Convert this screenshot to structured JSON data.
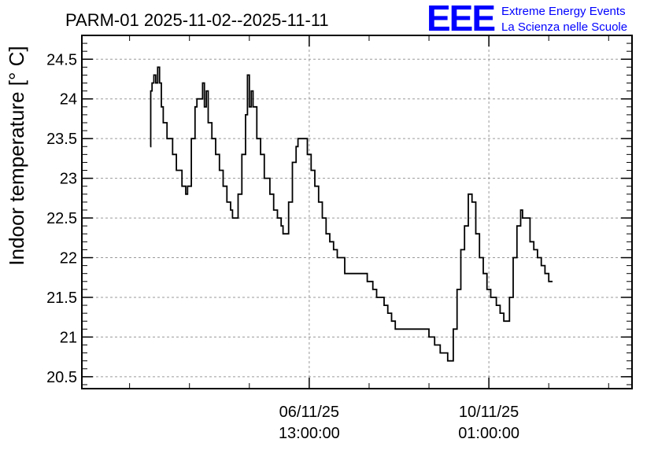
{
  "chart_data": {
    "type": "line",
    "title": "PARM-01 2025-11-02--2025-11-11",
    "ylabel": "Indoor temperature [° C]",
    "xlabel": "",
    "ylim": [
      20.35,
      24.8
    ],
    "yticks": [
      20.5,
      21,
      21.5,
      22,
      22.5,
      23,
      23.5,
      24,
      24.5
    ],
    "ytick_labels": [
      "20.5",
      "21",
      "21.5",
      "22",
      "22.5",
      "23",
      "23.5",
      "24",
      "24.5"
    ],
    "x_unit": "hours since 2025-11-02 00:00 (approx.)",
    "xlim": [
      -36.5,
      257.5
    ],
    "xticks_major": [
      {
        "x": 85,
        "date": "06/11/25",
        "time": "13:00:00"
      },
      {
        "x": 181,
        "date": "10/11/25",
        "time": "01:00:00"
      }
    ],
    "xticks_minor": [
      -11,
      21,
      53,
      117,
      149,
      213,
      245
    ],
    "grid": true,
    "line_color": "#000000",
    "series": [
      {
        "values": [
          {
            "x": 0,
            "y": 23.4
          },
          {
            "x": 0.3,
            "y": 24.1
          },
          {
            "x": 1,
            "y": 24.2
          },
          {
            "x": 2,
            "y": 24.3
          },
          {
            "x": 3,
            "y": 24.2
          },
          {
            "x": 4,
            "y": 24.4
          },
          {
            "x": 5,
            "y": 24.2
          },
          {
            "x": 6,
            "y": 23.9
          },
          {
            "x": 7,
            "y": 23.7
          },
          {
            "x": 9,
            "y": 23.5
          },
          {
            "x": 12,
            "y": 23.3
          },
          {
            "x": 14,
            "y": 23.1
          },
          {
            "x": 17,
            "y": 22.9
          },
          {
            "x": 19,
            "y": 22.8
          },
          {
            "x": 20,
            "y": 22.9
          },
          {
            "x": 22,
            "y": 23.5
          },
          {
            "x": 24,
            "y": 23.9
          },
          {
            "x": 25,
            "y": 24.0
          },
          {
            "x": 28,
            "y": 24.2
          },
          {
            "x": 29,
            "y": 23.9
          },
          {
            "x": 30,
            "y": 24.1
          },
          {
            "x": 31,
            "y": 23.7
          },
          {
            "x": 33,
            "y": 23.5
          },
          {
            "x": 35,
            "y": 23.3
          },
          {
            "x": 37,
            "y": 23.1
          },
          {
            "x": 39,
            "y": 22.9
          },
          {
            "x": 41,
            "y": 22.7
          },
          {
            "x": 43,
            "y": 22.6
          },
          {
            "x": 44,
            "y": 22.5
          },
          {
            "x": 46,
            "y": 22.5
          },
          {
            "x": 47,
            "y": 22.8
          },
          {
            "x": 49,
            "y": 23.3
          },
          {
            "x": 51,
            "y": 23.8
          },
          {
            "x": 52,
            "y": 24.3
          },
          {
            "x": 53,
            "y": 23.9
          },
          {
            "x": 54,
            "y": 24.1
          },
          {
            "x": 55,
            "y": 23.9
          },
          {
            "x": 57,
            "y": 23.5
          },
          {
            "x": 59,
            "y": 23.3
          },
          {
            "x": 61,
            "y": 23.0
          },
          {
            "x": 64,
            "y": 22.8
          },
          {
            "x": 66,
            "y": 22.6
          },
          {
            "x": 68,
            "y": 22.5
          },
          {
            "x": 70,
            "y": 22.4
          },
          {
            "x": 71,
            "y": 22.3
          },
          {
            "x": 73,
            "y": 22.3
          },
          {
            "x": 74,
            "y": 22.7
          },
          {
            "x": 76,
            "y": 23.2
          },
          {
            "x": 78,
            "y": 23.4
          },
          {
            "x": 79,
            "y": 23.5
          },
          {
            "x": 82,
            "y": 23.5
          },
          {
            "x": 84,
            "y": 23.3
          },
          {
            "x": 86,
            "y": 23.1
          },
          {
            "x": 88,
            "y": 22.9
          },
          {
            "x": 90,
            "y": 22.7
          },
          {
            "x": 92,
            "y": 22.5
          },
          {
            "x": 94,
            "y": 22.3
          },
          {
            "x": 96,
            "y": 22.2
          },
          {
            "x": 98,
            "y": 22.1
          },
          {
            "x": 100,
            "y": 22.0
          },
          {
            "x": 104,
            "y": 21.8
          },
          {
            "x": 112,
            "y": 21.8
          },
          {
            "x": 116,
            "y": 21.7
          },
          {
            "x": 119,
            "y": 21.6
          },
          {
            "x": 121,
            "y": 21.5
          },
          {
            "x": 125,
            "y": 21.4
          },
          {
            "x": 127,
            "y": 21.3
          },
          {
            "x": 129,
            "y": 21.2
          },
          {
            "x": 131,
            "y": 21.1
          },
          {
            "x": 144,
            "y": 21.1
          },
          {
            "x": 149,
            "y": 21.0
          },
          {
            "x": 152,
            "y": 20.9
          },
          {
            "x": 155,
            "y": 20.8
          },
          {
            "x": 158,
            "y": 20.8
          },
          {
            "x": 159,
            "y": 20.7
          },
          {
            "x": 161,
            "y": 20.7
          },
          {
            "x": 162,
            "y": 21.1
          },
          {
            "x": 164,
            "y": 21.6
          },
          {
            "x": 166,
            "y": 22.1
          },
          {
            "x": 168,
            "y": 22.4
          },
          {
            "x": 170,
            "y": 22.8
          },
          {
            "x": 172,
            "y": 22.7
          },
          {
            "x": 174,
            "y": 22.3
          },
          {
            "x": 176,
            "y": 22.0
          },
          {
            "x": 178,
            "y": 21.8
          },
          {
            "x": 180,
            "y": 21.6
          },
          {
            "x": 182,
            "y": 21.5
          },
          {
            "x": 185,
            "y": 21.4
          },
          {
            "x": 187,
            "y": 21.3
          },
          {
            "x": 189,
            "y": 21.2
          },
          {
            "x": 191,
            "y": 21.2
          },
          {
            "x": 192,
            "y": 21.5
          },
          {
            "x": 194,
            "y": 22.0
          },
          {
            "x": 196,
            "y": 22.4
          },
          {
            "x": 198,
            "y": 22.6
          },
          {
            "x": 199,
            "y": 22.5
          },
          {
            "x": 201,
            "y": 22.5
          },
          {
            "x": 203,
            "y": 22.2
          },
          {
            "x": 205,
            "y": 22.1
          },
          {
            "x": 207,
            "y": 22.0
          },
          {
            "x": 209,
            "y": 21.9
          },
          {
            "x": 211,
            "y": 21.8
          },
          {
            "x": 213,
            "y": 21.7
          },
          {
            "x": 215,
            "y": 21.7
          }
        ]
      }
    ]
  },
  "logo": {
    "mark": "EEE",
    "line1": "Extreme Energy Events",
    "line2": "La Scienza nelle Scuole",
    "color": "#0000ff"
  }
}
